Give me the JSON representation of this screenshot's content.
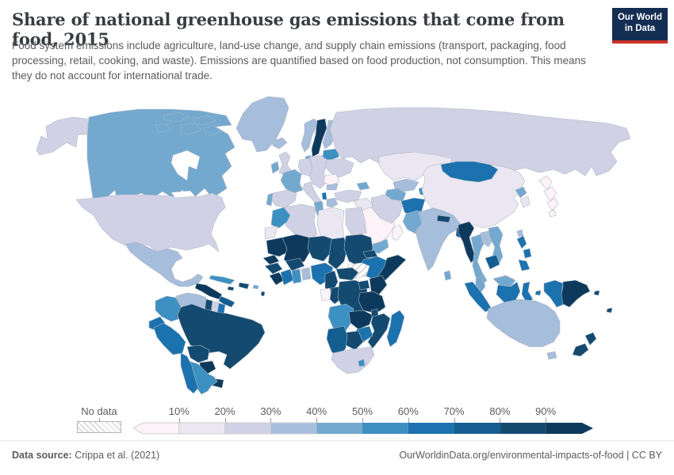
{
  "header": {
    "title": "Share of national greenhouse gas emissions that come from food, 2015",
    "subtitle": "Food system emissions include agriculture, land-use change, and supply chain emissions (transport, packaging, food processing, retail, cooking, and waste). Emissions are quantified based on food production, not consumption. This means they do not account for international trade.",
    "logo": {
      "line1": "Our World",
      "line2": "in Data",
      "bg": "#142d52",
      "accent": "#cf3126"
    }
  },
  "legend": {
    "no_data_label": "No data",
    "ticks": [
      "10%",
      "20%",
      "30%",
      "40%",
      "50%",
      "60%",
      "70%",
      "80%",
      "90%"
    ],
    "colors": [
      "#fdf2f7",
      "#ebe7f2",
      "#d1d1e6",
      "#a6bddb",
      "#74a9cf",
      "#3d90c2",
      "#1b72ae",
      "#135d90",
      "#144a70",
      "#0d3a5c"
    ]
  },
  "footer": {
    "source_label": "Data source:",
    "source_value": "Crippa et al. (2021)",
    "link": "OurWorldinData.org/environmental-impacts-of-food",
    "separator": "|",
    "license": "CC BY"
  },
  "chart_data": {
    "type": "choropleth",
    "title": "Share of national greenhouse gas emissions that come from food, 2015",
    "unit": "%",
    "legend_ticks": [
      "10%",
      "20%",
      "30%",
      "40%",
      "50%",
      "60%",
      "70%",
      "80%",
      "90%"
    ],
    "bins": [
      "<10%",
      "10-20%",
      "20-30%",
      "30-40%",
      "40-50%",
      "50-60%",
      "60-70%",
      "70-80%",
      "80-90%",
      ">90%"
    ],
    "no_data": [
      "south-sudan"
    ],
    "regions": {
      "alaska": 2,
      "canada": 4,
      "greenland": 3,
      "usa": 2,
      "mexico": 3,
      "central-america-north": 9,
      "central-america-south": 7,
      "cuba": 5,
      "jamaica": 8,
      "hispaniola": 8,
      "puerto-rico": 4,
      "lesser-antilles": 8,
      "venezuela": 3,
      "colombia": 5,
      "guyana": 8,
      "suriname": 2,
      "french-guiana": 6,
      "ecuador": 6,
      "peru": 6,
      "brazil": 8,
      "bolivia": 8,
      "paraguay": 9,
      "uruguay": 9,
      "argentina": 5,
      "chile": 6,
      "iceland": 3,
      "norway": 3,
      "sweden": 9,
      "finland": 3,
      "denmark": 4,
      "united-kingdom": 2,
      "ireland": 4,
      "france": 4,
      "spain": 2,
      "portugal": 4,
      "germany": 2,
      "central-europe": 2,
      "belarus-baltics": 5,
      "ukraine": 2,
      "romania": 0,
      "bulgaria": 3,
      "italy": 2,
      "albania": 6,
      "greece": 3,
      "russia": 2,
      "turkey": 2,
      "caucasus": 4,
      "syria-iraq": 1,
      "saudi-arabia": 0,
      "yemen": 4,
      "oman": 0,
      "iran": 2,
      "kazakhstan": 1,
      "uzbekistan": 3,
      "turkmenistan": 4,
      "kyrgyzstan": 3,
      "tajikistan": 5,
      "afghanistan": 6,
      "pakistan": 4,
      "india": 3,
      "nepal": 8,
      "bangladesh": 7,
      "sri-lanka": 4,
      "china": 1,
      "mongolia": 6,
      "north-korea": 4,
      "south-korea": 1,
      "japan": 0,
      "taiwan": 3,
      "myanmar": 9,
      "thailand": 4,
      "laos": 3,
      "vietnam": 4,
      "cambodia": 7,
      "malaysia": 4,
      "indonesia": 6,
      "philippines": 6,
      "papua-new-guinea": 9,
      "solomon-islands": 8,
      "fiji": 8,
      "australia": 3,
      "new-zealand": 8,
      "morocco": 5,
      "western-sahara": 1,
      "algeria": 2,
      "tunisia": 4,
      "libya": 1,
      "egypt": 2,
      "mauritania": 9,
      "mali": 9,
      "niger": 8,
      "chad": 8,
      "sudan": 8,
      "eritrea": 8,
      "ethiopia": 6,
      "somalia": 9,
      "south-sudan": "nodata",
      "senegal": 9,
      "guinea": 8,
      "sierra-leone-liberia": 9,
      "ivory-coast": 6,
      "ghana": 5,
      "togo-benin": 3,
      "burkina-faso": 8,
      "nigeria": 6,
      "cameroon": 8,
      "central-african-republic": 8,
      "gabon": 0,
      "congo": 8,
      "dr-congo": 8,
      "uganda": 8,
      "kenya": 9,
      "tanzania": 9,
      "angola": 5,
      "zambia": 9,
      "malawi": 8,
      "mozambique": 8,
      "zimbabwe": 6,
      "botswana": 8,
      "namibia": 7,
      "south-africa": 2,
      "lesotho": 5,
      "madagascar": 6
    }
  }
}
